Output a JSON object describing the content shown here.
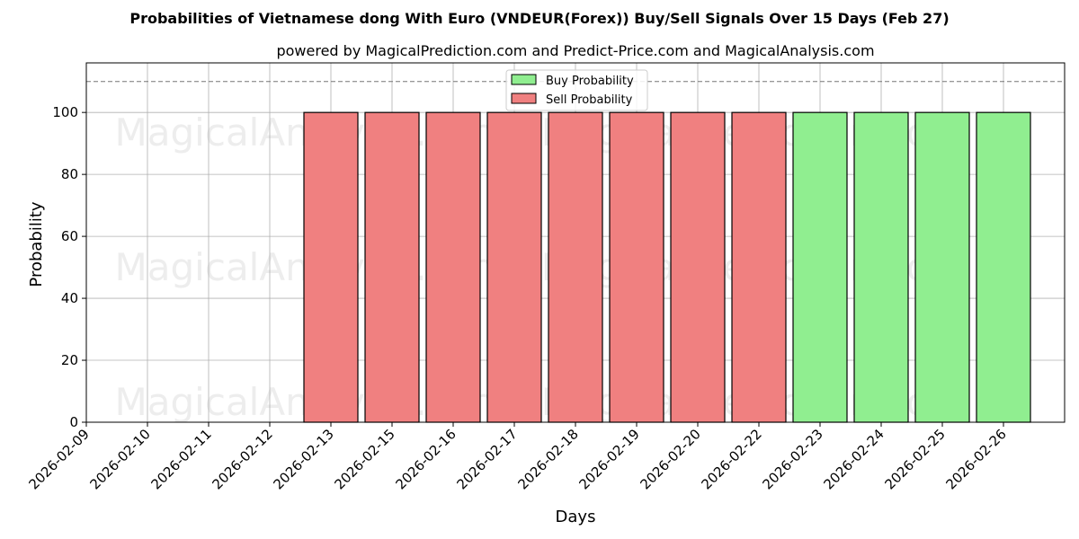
{
  "chart_data": {
    "type": "bar",
    "title": "Probabilities of Vietnamese dong With Euro (VNDEUR(Forex)) Buy/Sell Signals Over 15 Days (Feb 27)",
    "subtitle": "powered by MagicalPrediction.com and Predict-Price.com and MagicalAnalysis.com",
    "xlabel": "Days",
    "ylabel": "Probability",
    "ylim": [
      0,
      116
    ],
    "yticks": [
      0,
      20,
      40,
      60,
      80,
      100
    ],
    "reference_line": 110,
    "grid": true,
    "legend_position": "top-center",
    "categories": [
      "2026-02-09",
      "2026-02-10",
      "2026-02-11",
      "2026-02-12",
      "2026-02-13",
      "2026-02-15",
      "2026-02-16",
      "2026-02-17",
      "2026-02-18",
      "2026-02-19",
      "2026-02-20",
      "2026-02-22",
      "2026-02-23",
      "2026-02-24",
      "2026-02-25",
      "2026-02-26"
    ],
    "series": [
      {
        "name": "Buy Probability",
        "color": "#90ee90",
        "values": [
          0,
          0,
          0,
          0,
          0,
          0,
          0,
          0,
          0,
          0,
          0,
          0,
          100,
          100,
          100,
          100
        ]
      },
      {
        "name": "Sell Probability",
        "color": "#f08080",
        "values": [
          0,
          0,
          0,
          0,
          100,
          100,
          100,
          100,
          100,
          100,
          100,
          100,
          0,
          0,
          0,
          0
        ]
      }
    ]
  },
  "watermarks": [
    "MagicalAnalysis.com",
    "MagicalPrediction.com"
  ]
}
